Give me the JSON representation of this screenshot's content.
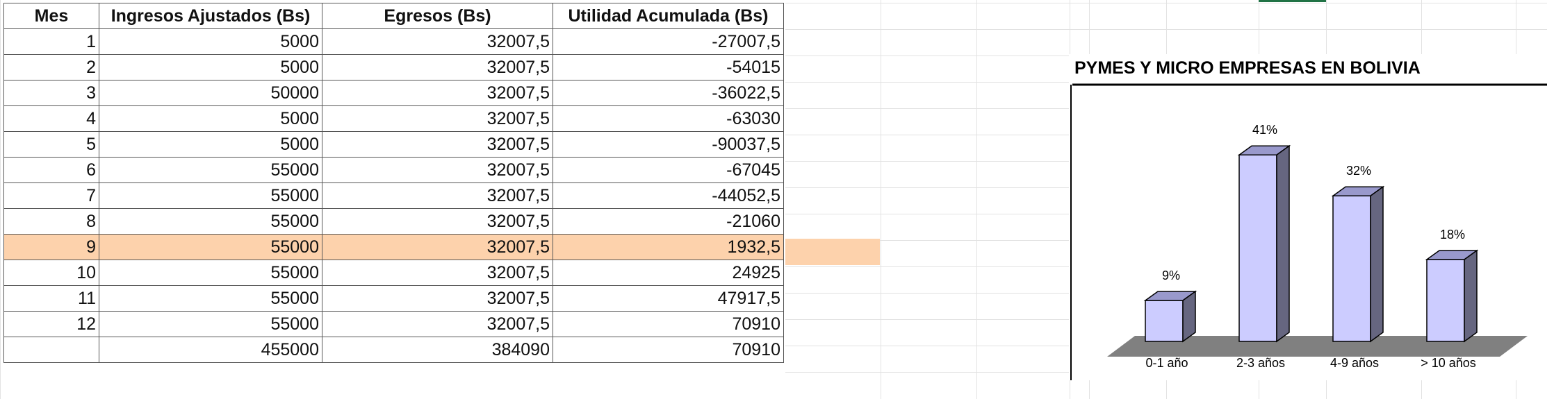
{
  "sheet": {
    "headers": [
      "Mes",
      "Ingresos Ajustados (Bs)",
      "Egresos (Bs)",
      "Utilidad Acumulada (Bs)"
    ],
    "rows": [
      [
        "1",
        "5000",
        "32007,5",
        "-27007,5"
      ],
      [
        "2",
        "5000",
        "32007,5",
        "-54015"
      ],
      [
        "3",
        "50000",
        "32007,5",
        "-36022,5"
      ],
      [
        "4",
        "5000",
        "32007,5",
        "-63030"
      ],
      [
        "5",
        "5000",
        "32007,5",
        "-90037,5"
      ],
      [
        "6",
        "55000",
        "32007,5",
        "-67045"
      ],
      [
        "7",
        "55000",
        "32007,5",
        "-44052,5"
      ],
      [
        "8",
        "55000",
        "32007,5",
        "-21060"
      ],
      [
        "9",
        "55000",
        "32007,5",
        "1932,5"
      ],
      [
        "10",
        "55000",
        "32007,5",
        "24925"
      ],
      [
        "11",
        "55000",
        "32007,5",
        "47917,5"
      ],
      [
        "12",
        "55000",
        "32007,5",
        "70910"
      ]
    ],
    "totals": [
      "",
      "455000",
      "384090",
      "70910"
    ],
    "highlight_row_mes": "9",
    "highlight_color": "#fdd2ac"
  },
  "chart_data": {
    "type": "bar",
    "title": "PYMES Y MICRO EMPRESAS EN BOLIVIA",
    "categories": [
      "0-1 año",
      "2-3 años",
      "4-9 años",
      "> 10 años"
    ],
    "values": [
      9,
      41,
      32,
      18
    ],
    "data_labels": [
      "9%",
      "41%",
      "32%",
      "18%"
    ],
    "ylim": [
      0,
      45
    ],
    "style": "3d-column",
    "bar_front_color": "#ccccff",
    "bar_top_color": "#9999cc",
    "bar_side_color": "#666680",
    "floor_color": "#808080",
    "grid": false,
    "legend": "none"
  }
}
